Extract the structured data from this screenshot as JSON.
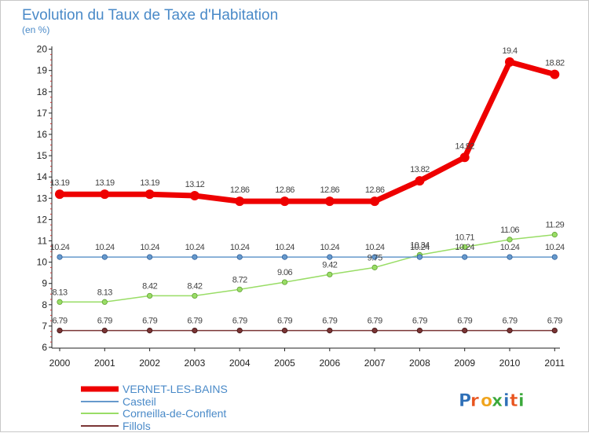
{
  "chart_data": {
    "type": "line",
    "title": "Evolution du Taux de Taxe d'Habitation",
    "subtitle": "(en %)",
    "xlabel": "",
    "ylabel": "",
    "ylim": [
      6,
      20
    ],
    "yticks": [
      "6",
      "7",
      "8",
      "9",
      "10",
      "11",
      "12",
      "13",
      "14",
      "15",
      "16",
      "17",
      "18",
      "19",
      "20"
    ],
    "x": [
      "2000",
      "2001",
      "2002",
      "2003",
      "2004",
      "2005",
      "2006",
      "2007",
      "2008",
      "2009",
      "2010",
      "2011"
    ],
    "grid": false,
    "legend": "bottom-left",
    "series": [
      {
        "name": "VERNET-LES-BAINS",
        "color": "#ee0000",
        "values": [
          13.19,
          13.19,
          13.19,
          13.12,
          12.86,
          12.86,
          12.86,
          12.86,
          13.82,
          14.92,
          19.4,
          18.82
        ]
      },
      {
        "name": "Casteil",
        "color": "#6699cc",
        "values": [
          10.24,
          10.24,
          10.24,
          10.24,
          10.24,
          10.24,
          10.24,
          10.24,
          10.24,
          10.24,
          10.24,
          10.24
        ]
      },
      {
        "name": "Corneilla-de-Conflent",
        "color": "#99dd66",
        "values": [
          8.13,
          8.13,
          8.42,
          8.42,
          8.72,
          9.06,
          9.42,
          9.75,
          10.34,
          10.71,
          11.06,
          11.29
        ]
      },
      {
        "name": "Fillols",
        "color": "#7a3535",
        "values": [
          6.79,
          6.79,
          6.79,
          6.79,
          6.79,
          6.79,
          6.79,
          6.79,
          6.79,
          6.79,
          6.79,
          6.79
        ]
      }
    ],
    "data_labels": [
      [
        "13.19",
        "13.19",
        "13.19",
        "13.12",
        "12.86",
        "12.86",
        "12.86",
        "12.86",
        "13.82",
        "14.92",
        "19.4",
        "18.82"
      ],
      [
        "10.24",
        "10.24",
        "10.24",
        "10.24",
        "10.24",
        "10.24",
        "10.24",
        "10.24",
        "10.24",
        "10.24",
        "10.24",
        "10.24"
      ],
      [
        "8.13",
        "8.13",
        "8.42",
        "8.42",
        "8.72",
        "9.06",
        "9.42",
        "9.75",
        "10.34",
        "10.71",
        "11.06",
        "11.29"
      ],
      [
        "6.79",
        "6.79",
        "6.79",
        "6.79",
        "6.79",
        "6.79",
        "6.79",
        "6.79",
        "6.79",
        "6.79",
        "6.79",
        "6.79"
      ]
    ]
  },
  "logo": {
    "text": "Proxiti",
    "letter_colors": [
      "#2e6fb7",
      "#e8541e",
      "#f0a41c",
      "#3aa83a",
      "#2e6fb7",
      "#e8541e",
      "#3aa83a"
    ]
  }
}
